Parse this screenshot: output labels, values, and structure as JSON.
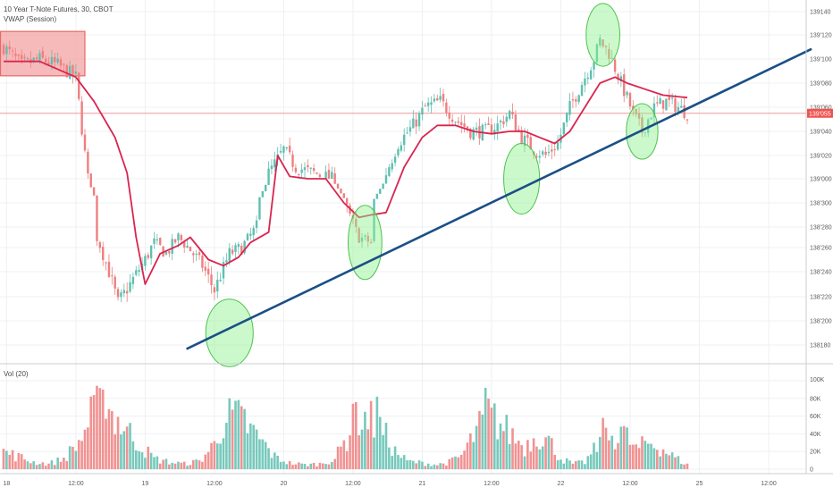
{
  "header": {
    "title": "10 Year T-Note Futures, 30, CBOT",
    "vwap_label": "VWAP (Session)",
    "volume_label": "Vol (20)"
  },
  "colors": {
    "up": "#5fbfb0",
    "down": "#ef7f7f",
    "vwap": "#d9254f",
    "trendline": "#1b4f86",
    "highlight_fill": "#8ef28e",
    "highlight_stroke": "#4cc24c",
    "box_fill": "#f4a3a3",
    "box_stroke": "#e05555",
    "price_line": "#ef9a9a",
    "price_tag": "#ef5350",
    "grid": "#eef0f3",
    "axis_text": "#5a5a5a"
  },
  "chart_data": {
    "type": "candlestick",
    "symbol": "10 Year T-Note Futures",
    "interval": "30",
    "exchange": "CBOT",
    "price_axis": {
      "range": [
        138170,
        139145
      ],
      "ticks": [
        {
          "value": 138180,
          "label": "138180"
        },
        {
          "value": 138200,
          "label": "138'200"
        },
        {
          "value": 138220,
          "label": "138'220"
        },
        {
          "value": 138240,
          "label": "138'240"
        },
        {
          "value": 138260,
          "label": "138'260"
        },
        {
          "value": 138280,
          "label": "138'280"
        },
        {
          "value": 138300,
          "label": "138'300"
        },
        {
          "value": 139000,
          "label": "139'000"
        },
        {
          "value": 139020,
          "label": "139'020"
        },
        {
          "value": 139040,
          "label": "139'040"
        },
        {
          "value": 139060,
          "label": "139'060"
        },
        {
          "value": 139080,
          "label": "139'080"
        },
        {
          "value": 139100,
          "label": "139'100"
        },
        {
          "value": 139120,
          "label": "139'120"
        },
        {
          "value": 139140,
          "label": "139140"
        }
      ]
    },
    "last_price": {
      "value": 139055,
      "label": "139'055"
    },
    "time_axis": {
      "ticks": [
        {
          "t": 1,
          "label": "18"
        },
        {
          "t": 24,
          "label": "12:00"
        },
        {
          "t": 47,
          "label": "19"
        },
        {
          "t": 70,
          "label": "12:00"
        },
        {
          "t": 93,
          "label": "20"
        },
        {
          "t": 116,
          "label": "12:00"
        },
        {
          "t": 139,
          "label": "21"
        },
        {
          "t": 162,
          "label": "12:00"
        },
        {
          "t": 185,
          "label": "22"
        },
        {
          "t": 208,
          "label": "12:00"
        },
        {
          "t": 231,
          "label": "25"
        },
        {
          "t": 254,
          "label": "12:00"
        }
      ],
      "range": [
        -2,
        270
      ]
    },
    "volume_axis": {
      "range": [
        0,
        100000
      ],
      "ticks": [
        {
          "value": 0,
          "label": "0"
        },
        {
          "value": 20000,
          "label": "20K"
        },
        {
          "value": 40000,
          "label": "40K"
        },
        {
          "value": 60000,
          "label": "60K"
        },
        {
          "value": 80000,
          "label": "80K"
        },
        {
          "value": 100000,
          "label": "100K"
        }
      ]
    },
    "keypoints_close": [
      [
        0,
        139110
      ],
      [
        6,
        139095
      ],
      [
        12,
        139100
      ],
      [
        18,
        139095
      ],
      [
        24,
        139085
      ],
      [
        28,
        139000
      ],
      [
        31,
        138270
      ],
      [
        35,
        138240
      ],
      [
        38,
        138215
      ],
      [
        42,
        138230
      ],
      [
        47,
        138250
      ],
      [
        50,
        138265
      ],
      [
        54,
        138255
      ],
      [
        58,
        138270
      ],
      [
        62,
        138258
      ],
      [
        66,
        138245
      ],
      [
        70,
        138225
      ],
      [
        75,
        138255
      ],
      [
        79,
        138260
      ],
      [
        84,
        138280
      ],
      [
        88,
        139005
      ],
      [
        93,
        139025
      ],
      [
        97,
        139010
      ],
      [
        103,
        139005
      ],
      [
        109,
        139000
      ],
      [
        114,
        138295
      ],
      [
        118,
        138270
      ],
      [
        122,
        138265
      ],
      [
        127,
        139005
      ],
      [
        131,
        139030
      ],
      [
        136,
        139045
      ],
      [
        140,
        139060
      ],
      [
        145,
        139065
      ],
      [
        150,
        139050
      ],
      [
        155,
        139040
      ],
      [
        160,
        139040
      ],
      [
        164,
        139045
      ],
      [
        168,
        139055
      ],
      [
        172,
        139035
      ],
      [
        176,
        139025
      ],
      [
        180,
        139020
      ],
      [
        184,
        139030
      ],
      [
        188,
        139060
      ],
      [
        192,
        139080
      ],
      [
        196,
        139100
      ],
      [
        198,
        139115
      ],
      [
        201,
        139105
      ],
      [
        205,
        139080
      ],
      [
        209,
        139055
      ],
      [
        212,
        139040
      ],
      [
        216,
        139060
      ],
      [
        220,
        139065
      ],
      [
        224,
        139060
      ],
      [
        227,
        139055
      ]
    ],
    "vwap_keypoints": [
      [
        0,
        139098
      ],
      [
        12,
        139098
      ],
      [
        24,
        139085
      ],
      [
        30,
        139065
      ],
      [
        37,
        139035
      ],
      [
        41,
        139005
      ],
      [
        44,
        138270
      ],
      [
        47,
        138230
      ],
      [
        52,
        138255
      ],
      [
        58,
        138262
      ],
      [
        62,
        138270
      ],
      [
        68,
        138250
      ],
      [
        73,
        138245
      ],
      [
        78,
        138252
      ],
      [
        82,
        138265
      ],
      [
        88,
        138275
      ],
      [
        91,
        139020
      ],
      [
        95,
        139002
      ],
      [
        101,
        139000
      ],
      [
        107,
        139000
      ],
      [
        113,
        138300
      ],
      [
        118,
        138288
      ],
      [
        122,
        138290
      ],
      [
        127,
        138292
      ],
      [
        133,
        139010
      ],
      [
        139,
        139035
      ],
      [
        144,
        139045
      ],
      [
        150,
        139045
      ],
      [
        156,
        139040
      ],
      [
        162,
        139038
      ],
      [
        168,
        139040
      ],
      [
        173,
        139040
      ],
      [
        178,
        139035
      ],
      [
        183,
        139030
      ],
      [
        188,
        139040
      ],
      [
        193,
        139060
      ],
      [
        198,
        139080
      ],
      [
        203,
        139085
      ],
      [
        207,
        139080
      ],
      [
        213,
        139075
      ],
      [
        219,
        139070
      ],
      [
        227,
        139068
      ]
    ],
    "volume_keypoints": [
      [
        0,
        20000
      ],
      [
        5,
        14000
      ],
      [
        10,
        8000
      ],
      [
        15,
        6000
      ],
      [
        20,
        12000
      ],
      [
        25,
        30000
      ],
      [
        30,
        65000
      ],
      [
        34,
        72000
      ],
      [
        38,
        55000
      ],
      [
        42,
        40000
      ],
      [
        46,
        25000
      ],
      [
        50,
        12000
      ],
      [
        55,
        8000
      ],
      [
        60,
        6000
      ],
      [
        65,
        9000
      ],
      [
        70,
        28000
      ],
      [
        73,
        55000
      ],
      [
        77,
        60000
      ],
      [
        81,
        48000
      ],
      [
        86,
        30000
      ],
      [
        90,
        14000
      ],
      [
        95,
        7000
      ],
      [
        100,
        5000
      ],
      [
        105,
        6000
      ],
      [
        110,
        12000
      ],
      [
        114,
        35000
      ],
      [
        118,
        60000
      ],
      [
        122,
        55000
      ],
      [
        126,
        42000
      ],
      [
        130,
        20000
      ],
      [
        134,
        9000
      ],
      [
        139,
        7000
      ],
      [
        144,
        5000
      ],
      [
        148,
        8000
      ],
      [
        152,
        15000
      ],
      [
        157,
        42000
      ],
      [
        161,
        62000
      ],
      [
        165,
        50000
      ],
      [
        169,
        38000
      ],
      [
        173,
        25000
      ],
      [
        177,
        40000
      ],
      [
        181,
        32000
      ],
      [
        185,
        12000
      ],
      [
        189,
        6000
      ],
      [
        193,
        8000
      ],
      [
        197,
        25000
      ],
      [
        202,
        38000
      ],
      [
        206,
        40000
      ],
      [
        210,
        22000
      ],
      [
        214,
        30000
      ],
      [
        218,
        25000
      ],
      [
        222,
        15000
      ],
      [
        227,
        5000
      ]
    ],
    "volume_spikes": [
      {
        "t": 33,
        "v": 90000
      },
      {
        "t": 80,
        "v": 68000
      },
      {
        "t": 116,
        "v": 74000
      },
      {
        "t": 124,
        "v": 82000
      },
      {
        "t": 160,
        "v": 92000
      },
      {
        "t": 199,
        "v": 58000
      },
      {
        "t": 205,
        "v": 48000
      }
    ],
    "annotations": {
      "rectangle": {
        "t_start": -1,
        "t_end": 27,
        "price_top": 139123,
        "price_bottom": 139086
      },
      "trendline": {
        "t_start": 61,
        "price_start": 138177,
        "t_end": 268,
        "price_end": 139108
      },
      "highlights": [
        {
          "t": 75,
          "price": 138190,
          "rt": 4.5,
          "rp": 28
        },
        {
          "t": 120,
          "price": 138265,
          "rt": 3.2,
          "rp": 33
        },
        {
          "t": 172,
          "price": 139000,
          "rt": 3.4,
          "rp": 30
        },
        {
          "t": 199,
          "price": 139120,
          "rt": 3.2,
          "rp": 27
        },
        {
          "t": 212,
          "price": 139040,
          "rt": 3.0,
          "rp": 23
        }
      ]
    }
  }
}
